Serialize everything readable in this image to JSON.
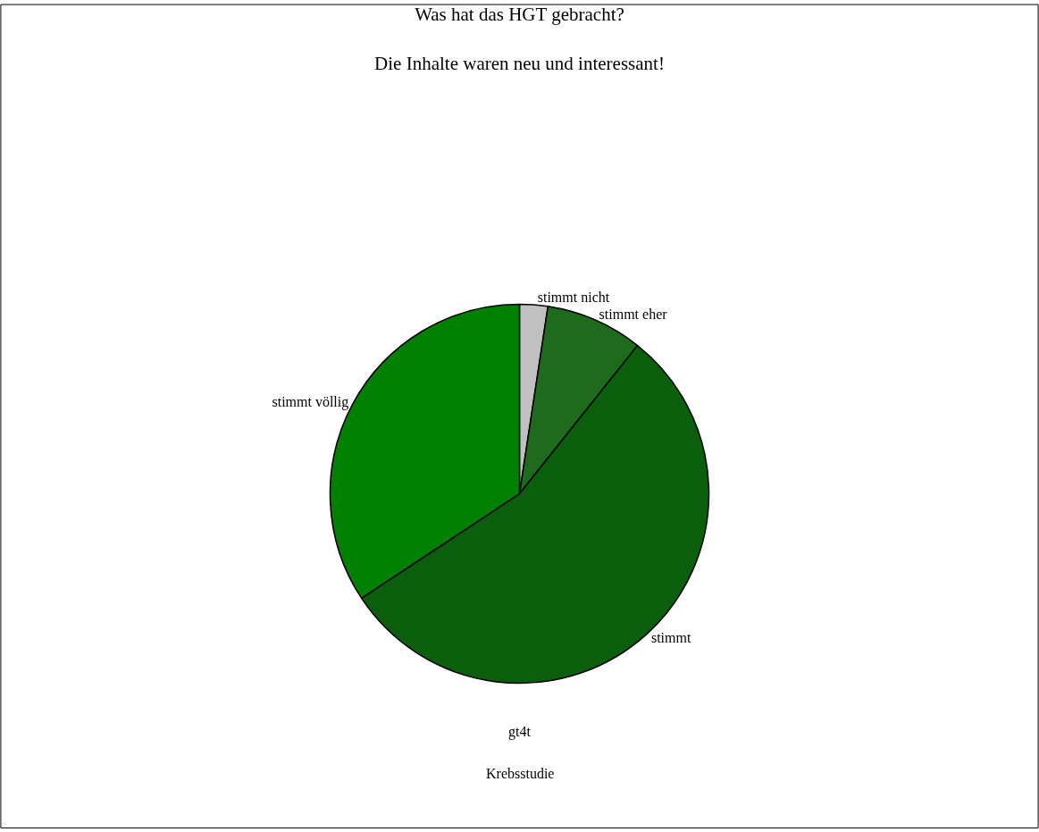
{
  "chart_data": {
    "type": "pie",
    "title": "Was hat das HGT gebracht?",
    "subtitle": "Die Inhalte waren neu und interessant!",
    "categories": [
      "stimmt nicht",
      "stimmt eher",
      "stimmt",
      "stimmt völlig"
    ],
    "values": [
      2.4,
      8.3,
      55.0,
      34.3
    ],
    "colors": [
      "#c0c0c0",
      "#1e6b1e",
      "#0b5e0b",
      "#008000"
    ],
    "annotations": [
      "gt4t",
      "Krebsstudie"
    ],
    "legend": false
  }
}
